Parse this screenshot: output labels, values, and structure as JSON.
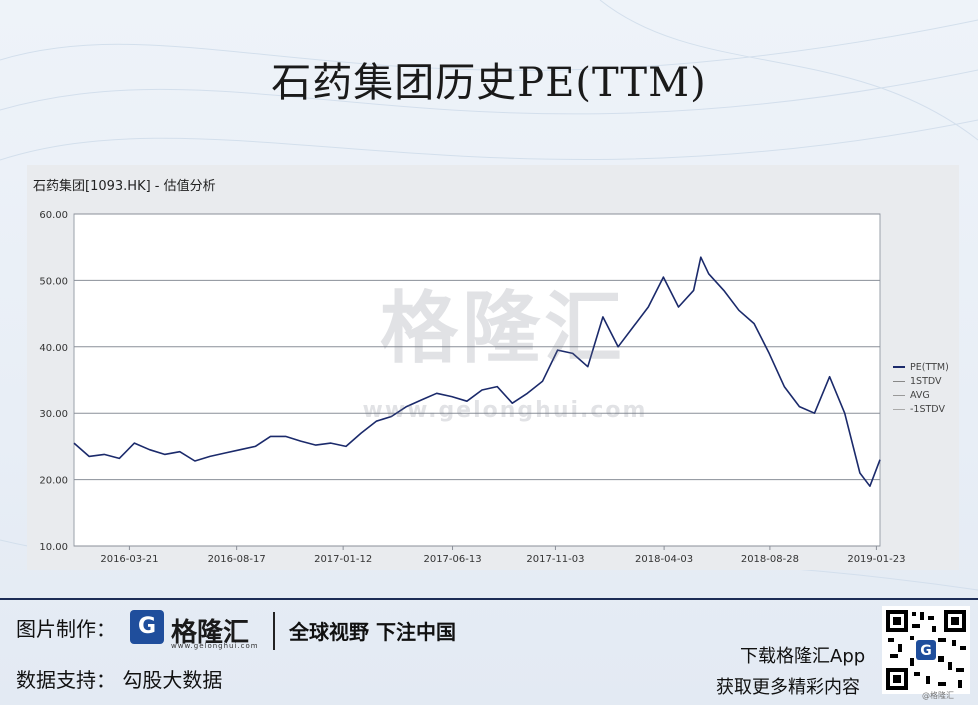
{
  "page": {
    "title": "石药集团历史PE(TTM)"
  },
  "chart_header": "石药集团[1093.HK] - 估值分析",
  "watermark": {
    "text": "格隆汇",
    "url": "www.gelonghui.com"
  },
  "chart_data": {
    "type": "line",
    "title": "石药集团[1093.HK] - 估值分析",
    "xlabel": "",
    "ylabel": "",
    "ylim": [
      10,
      60
    ],
    "y_ticks": [
      "10.00",
      "20.00",
      "30.00",
      "40.00",
      "50.00",
      "60.00"
    ],
    "x_ticks": [
      "2016-03-21",
      "2016-08-17",
      "2017-01-12",
      "2017-06-13",
      "2017-11-03",
      "2018-04-03",
      "2018-08-28",
      "2019-01-23"
    ],
    "grid": true,
    "legend_position": "right",
    "legend": [
      "PE(TTM)",
      "1STDV",
      "AVG",
      "-1STDV"
    ],
    "series": [
      {
        "name": "PE(TTM)",
        "color": "#1b2a6b",
        "x": [
          "2016-01-04",
          "2016-01-25",
          "2016-02-15",
          "2016-03-07",
          "2016-03-28",
          "2016-04-18",
          "2016-05-09",
          "2016-05-30",
          "2016-06-20",
          "2016-07-11",
          "2016-08-01",
          "2016-08-22",
          "2016-09-12",
          "2016-10-03",
          "2016-10-24",
          "2016-11-14",
          "2016-12-05",
          "2016-12-26",
          "2017-01-16",
          "2017-02-06",
          "2017-02-27",
          "2017-03-20",
          "2017-04-10",
          "2017-05-01",
          "2017-05-22",
          "2017-06-12",
          "2017-07-03",
          "2017-07-24",
          "2017-08-14",
          "2017-09-04",
          "2017-09-25",
          "2017-10-16",
          "2017-11-06",
          "2017-11-27",
          "2017-12-18",
          "2018-01-08",
          "2018-01-29",
          "2018-02-19",
          "2018-03-12",
          "2018-04-02",
          "2018-04-23",
          "2018-05-14",
          "2018-05-24",
          "2018-06-04",
          "2018-06-25",
          "2018-07-16",
          "2018-08-06",
          "2018-08-27",
          "2018-09-17",
          "2018-10-08",
          "2018-10-29",
          "2018-11-19",
          "2018-12-10",
          "2018-12-31",
          "2019-01-14",
          "2019-01-28"
        ],
        "values": [
          25.5,
          23.5,
          23.8,
          23.2,
          25.5,
          24.5,
          23.8,
          24.2,
          22.8,
          23.5,
          24.0,
          24.5,
          25.0,
          26.5,
          26.5,
          25.8,
          25.2,
          25.5,
          25.0,
          27.0,
          28.8,
          29.5,
          31.0,
          32.0,
          33.0,
          32.5,
          31.8,
          33.5,
          34.0,
          31.5,
          33.0,
          34.8,
          39.5,
          39.0,
          37.0,
          44.5,
          40.0,
          43.0,
          46.0,
          50.5,
          46.0,
          48.5,
          53.5,
          51.0,
          48.5,
          45.5,
          43.5,
          39.0,
          34.0,
          31.0,
          30.0,
          35.5,
          30.0,
          21.0,
          19.0,
          23.0
        ]
      },
      {
        "name": "1STDV",
        "color": "#888888",
        "values": []
      },
      {
        "name": "AVG",
        "color": "#999999",
        "values": []
      },
      {
        "name": "-1STDV",
        "color": "#aaaaaa",
        "values": []
      }
    ]
  },
  "footer": {
    "made_by_label": "图片制作：",
    "logo_glyph": "G",
    "brand_name": "格隆汇",
    "brand_url": "www.gelonghui.com",
    "slogan": "全球视野 下注中国",
    "data_support_label": "数据支持：",
    "data_support_value": "勾股大数据",
    "download_line1": "下载格隆汇App",
    "download_line2": "获取更多精彩内容",
    "qr_note": "@格隆汇"
  }
}
